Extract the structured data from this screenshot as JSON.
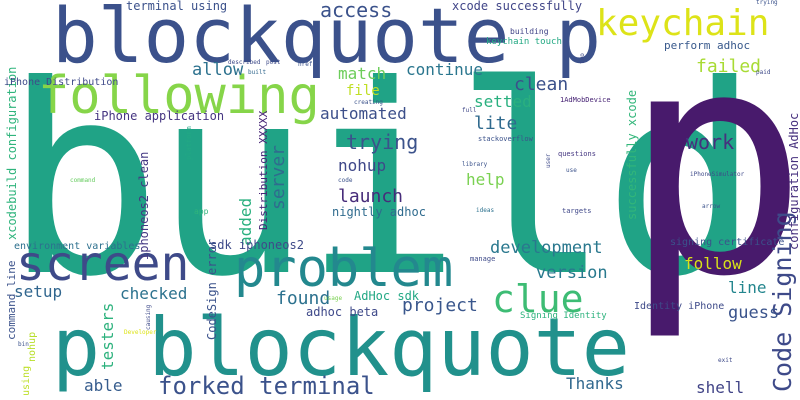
{
  "words": [
    {
      "text": "build",
      "color": "#20a386"
    },
    {
      "text": "p",
      "color": "#481a6c"
    },
    {
      "text": "blockquote p",
      "color": "#3b518b"
    },
    {
      "text": "p blockquote",
      "color": "#21918c"
    },
    {
      "text": "following",
      "color": "#86d549"
    },
    {
      "text": "problem",
      "color": "#23888e"
    },
    {
      "text": "screen",
      "color": "#3e4a89"
    },
    {
      "text": "keychain",
      "color": "#dde318"
    },
    {
      "text": "clue",
      "color": "#3dbc74"
    },
    {
      "text": "Code Signing",
      "color": "#3e4a89"
    },
    {
      "text": "forked terminal",
      "color": "#3b528b"
    },
    {
      "text": "access",
      "color": "#3b528b"
    },
    {
      "text": "work",
      "color": "#46307e"
    },
    {
      "text": "trying",
      "color": "#3b528b"
    },
    {
      "text": "launch",
      "color": "#472c7a"
    },
    {
      "text": "development",
      "color": "#2a788e"
    },
    {
      "text": "version",
      "color": "#29798e"
    },
    {
      "text": "found",
      "color": "#2c718e"
    },
    {
      "text": "project",
      "color": "#39568c"
    },
    {
      "text": "server",
      "color": "#2f6c8e"
    },
    {
      "text": "automated",
      "color": "#3c4f8a"
    },
    {
      "text": "match",
      "color": "#6ccd5a"
    },
    {
      "text": "continue",
      "color": "#2a768e"
    },
    {
      "text": "clean",
      "color": "#3b518b"
    },
    {
      "text": "failed",
      "color": "#a8db34"
    },
    {
      "text": "allow",
      "color": "#2c718e"
    },
    {
      "text": "help",
      "color": "#7ad151"
    },
    {
      "text": "follow",
      "color": "#d8e219"
    },
    {
      "text": "guess",
      "color": "#3a538b"
    },
    {
      "text": "Thanks",
      "color": "#31688e"
    },
    {
      "text": "shell",
      "color": "#414487"
    },
    {
      "text": "checked",
      "color": "#2c728e"
    },
    {
      "text": "setup",
      "color": "#31668e"
    },
    {
      "text": "able",
      "color": "#365c8d"
    },
    {
      "text": "line",
      "color": "#24868e"
    },
    {
      "text": "setted",
      "color": "#2ab07f"
    },
    {
      "text": "lite",
      "color": "#306a8e"
    },
    {
      "text": "nohup",
      "color": "#3f4889"
    },
    {
      "text": "file",
      "color": "#c0df25"
    },
    {
      "text": "added",
      "color": "#2ab07f"
    },
    {
      "text": "testers",
      "color": "#2db27d"
    },
    {
      "text": "AdHoc sdk",
      "color": "#22a884"
    },
    {
      "text": "adhoc beta",
      "color": "#3e4989"
    },
    {
      "text": "xcode successfully",
      "color": "#404588"
    },
    {
      "text": "terminal using",
      "color": "#3b518b"
    },
    {
      "text": "perform adhoc",
      "color": "#38598c"
    },
    {
      "text": "iPhone application",
      "color": "#453581"
    },
    {
      "text": "nightly adhoc",
      "color": "#2f6b8e"
    },
    {
      "text": "sdk iphoneos2",
      "color": "#3e4a89"
    },
    {
      "text": "iphoneos2 clean",
      "color": "#443983"
    },
    {
      "text": "environment variables",
      "color": "#2d708e"
    },
    {
      "text": "command line",
      "color": "#3b528b"
    },
    {
      "text": "xcodebuild configuration",
      "color": "#2fb47c"
    },
    {
      "text": "configuration AdHoc",
      "color": "#46307e"
    },
    {
      "text": "successfully xcode",
      "color": "#32b67a"
    },
    {
      "text": "iPhone Distribution",
      "color": "#3e4a89"
    },
    {
      "text": "Distribution XXXXX",
      "color": "#482677"
    },
    {
      "text": "CodeSign error",
      "color": "#3b528b"
    },
    {
      "text": "signing certificate",
      "color": "#3b528b"
    },
    {
      "text": "Identity iPhone",
      "color": "#3e4a89"
    },
    {
      "text": "Signing Identity",
      "color": "#2db27d"
    },
    {
      "text": "keychain touch",
      "color": "#23a983"
    },
    {
      "text": "building",
      "color": "#414487"
    },
    {
      "text": "stackoverflow",
      "color": "#3b528b"
    },
    {
      "text": "questions",
      "color": "#453781"
    },
    {
      "text": "iPhoneSimulator",
      "color": "#3e4a89"
    },
    {
      "text": "1AdMobDevice",
      "color": "#482475"
    },
    {
      "text": "using",
      "color": "#bddf26"
    },
    {
      "text": "nohup",
      "color": "#b8de29"
    },
    {
      "text": "manage",
      "color": "#3e4a89"
    },
    {
      "text": "targets",
      "color": "#3f4788"
    },
    {
      "text": "library",
      "color": "#3b528b"
    },
    {
      "text": "platform",
      "color": "#22a884"
    },
    {
      "text": "app",
      "color": "#2fb47c"
    },
    {
      "text": "command",
      "color": "#65cb5e"
    },
    {
      "text": "Developer",
      "color": "#dde318"
    },
    {
      "text": "paid",
      "color": "#3e4a89"
    },
    {
      "text": "creating",
      "color": "#3b528b"
    },
    {
      "text": "full",
      "color": "#3f4788"
    },
    {
      "text": "use",
      "color": "#3b528b"
    },
    {
      "text": "user",
      "color": "#3e4a89"
    },
    {
      "text": "code",
      "color": "#3b528b"
    },
    {
      "text": "ideas",
      "color": "#2c718e"
    },
    {
      "text": "described",
      "color": "#3e4a89"
    },
    {
      "text": "built",
      "color": "#31688e"
    },
    {
      "text": "post",
      "color": "#3e4a89"
    },
    {
      "text": "href",
      "color": "#3b528b"
    },
    {
      "text": "usage",
      "color": "#7ad151"
    },
    {
      "text": "trying",
      "color": "#3b528b"
    },
    {
      "text": "two",
      "color": "#3e4a89"
    },
    {
      "text": "exit",
      "color": "#3e4a89"
    },
    {
      "text": "bin",
      "color": "#3b528b"
    },
    {
      "text": "causing",
      "color": "#3e4a89"
    },
    {
      "text": "arrow",
      "color": "#3b528b"
    }
  ]
}
